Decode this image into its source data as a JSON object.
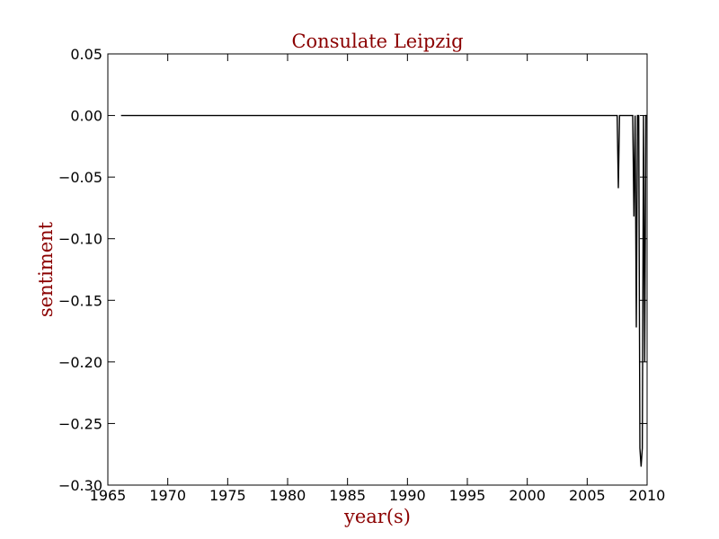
{
  "chart_data": {
    "type": "line",
    "title": "Consulate Leipzig",
    "xlabel": "year(s)",
    "ylabel": "sentiment",
    "xlim": [
      1965,
      2010
    ],
    "ylim": [
      -0.3,
      0.05
    ],
    "x_ticks": [
      "1965",
      "1970",
      "1975",
      "1980",
      "1985",
      "1990",
      "1995",
      "2000",
      "2005",
      "2010"
    ],
    "y_ticks": [
      "0.05",
      "0.00",
      "−0.05",
      "−0.10",
      "−0.15",
      "−0.20",
      "−0.25",
      "−0.30"
    ],
    "grid": false,
    "series": [
      {
        "color": "#000000",
        "x": [
          1966.1,
          2007.5,
          2007.6,
          2007.7,
          2008.8,
          2008.9,
          2009.0,
          2009.1,
          2009.2,
          2009.3,
          2009.4,
          2009.5,
          2009.6,
          2009.7,
          2009.8,
          2009.9,
          2010.0
        ],
        "y": [
          0.0,
          0.0,
          -0.059,
          0.0,
          0.0,
          -0.082,
          0.0,
          -0.172,
          0.0,
          0.0,
          -0.27,
          -0.285,
          -0.27,
          0.0,
          -0.2,
          0.0,
          0.0
        ]
      }
    ]
  }
}
